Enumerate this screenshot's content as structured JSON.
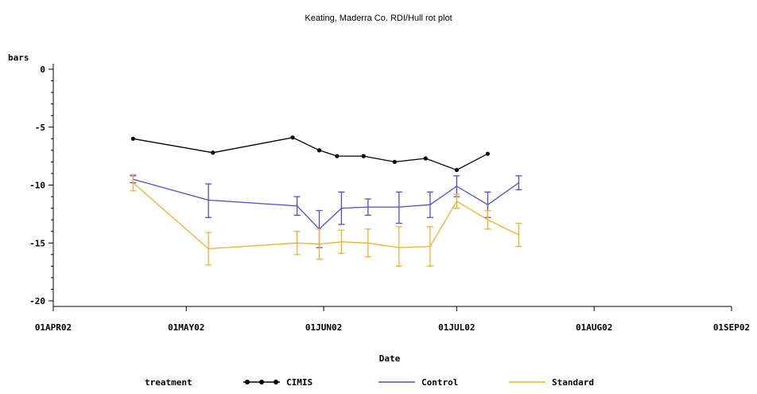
{
  "chart_data": {
    "type": "line",
    "title": "Keating, Maderra Co. RDI/Hull rot plot",
    "xlabel": "Date",
    "ylabel": "bars",
    "x_ticks": [
      "01APR02",
      "01MAY02",
      "01JUN02",
      "01JUL02",
      "01AUG02",
      "01SEP02"
    ],
    "y_ticks": [
      "0",
      "-5",
      "-10",
      "-15",
      "-20"
    ],
    "ylim": [
      -20,
      0
    ],
    "xlim": [
      "2002-04-01",
      "2002-09-01"
    ],
    "legend_title": "treatment",
    "legend_position": "bottom",
    "series": [
      {
        "name": "CIMIS",
        "color": "#000000",
        "markers": true,
        "x": [
          "2002-04-19",
          "2002-05-07",
          "2002-05-25",
          "2002-05-31",
          "2002-06-04",
          "2002-06-10",
          "2002-06-17",
          "2002-06-24",
          "2002-07-01",
          "2002-07-08"
        ],
        "y": [
          -6.0,
          -7.2,
          -5.9,
          -7.0,
          -7.5,
          -7.5,
          -8.0,
          -7.7,
          -8.7,
          -7.3
        ]
      },
      {
        "name": "Control",
        "color": "#4f4fcf",
        "x": [
          "2002-04-19",
          "2002-05-06",
          "2002-05-26",
          "2002-05-31",
          "2002-06-05",
          "2002-06-11",
          "2002-06-18",
          "2002-06-25",
          "2002-07-01",
          "2002-07-08",
          "2002-07-15"
        ],
        "y": [
          -9.5,
          -11.3,
          -11.8,
          -13.8,
          -12.0,
          -11.9,
          -11.9,
          -11.7,
          -10.1,
          -11.7,
          -9.8
        ],
        "err_low": [
          -9.8,
          -12.8,
          -12.6,
          -15.4,
          -13.4,
          -12.6,
          -13.3,
          -12.8,
          -11.0,
          -12.8,
          -10.4
        ],
        "err_high": [
          -9.2,
          -9.9,
          -11.0,
          -12.2,
          -10.6,
          -11.2,
          -10.6,
          -10.6,
          -9.2,
          -10.6,
          -9.2
        ]
      },
      {
        "name": "Standard",
        "color": "#f0b030",
        "x": [
          "2002-04-19",
          "2002-05-06",
          "2002-05-26",
          "2002-05-31",
          "2002-06-05",
          "2002-06-11",
          "2002-06-18",
          "2002-06-25",
          "2002-07-01",
          "2002-07-08",
          "2002-07-15"
        ],
        "y": [
          -9.8,
          -15.5,
          -15.0,
          -15.1,
          -14.9,
          -15.0,
          -15.4,
          -15.3,
          -11.4,
          -13.0,
          -14.3
        ],
        "err_low": [
          -10.5,
          -16.9,
          -16.0,
          -16.4,
          -15.9,
          -16.2,
          -17.0,
          -17.0,
          -12.0,
          -13.8,
          -15.3
        ],
        "err_high": [
          -9.1,
          -14.1,
          -14.0,
          -13.8,
          -13.9,
          -13.8,
          -13.6,
          -13.6,
          -10.8,
          -12.2,
          -13.3
        ]
      }
    ]
  }
}
